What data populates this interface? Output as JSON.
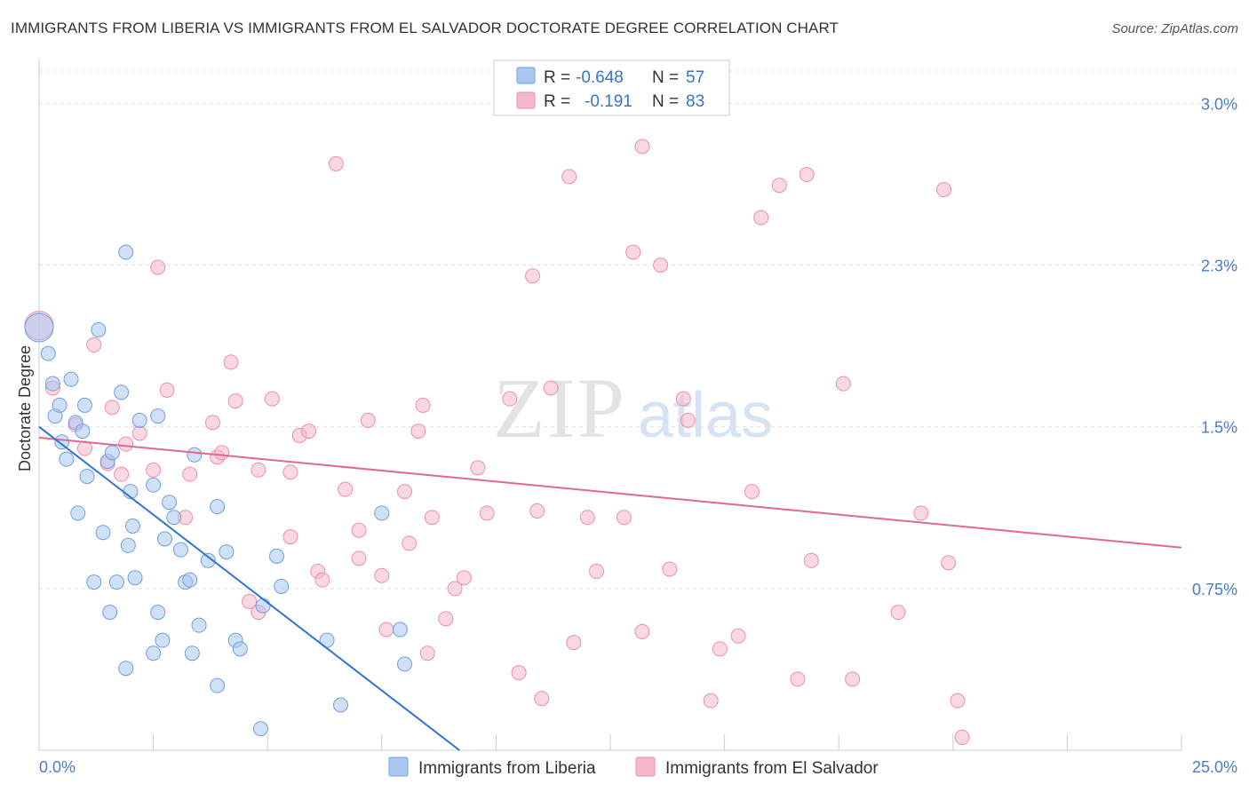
{
  "title": "IMMIGRANTS FROM LIBERIA VS IMMIGRANTS FROM EL SALVADOR DOCTORATE DEGREE CORRELATION CHART",
  "source": "Source: ZipAtlas.com",
  "watermark": {
    "zip": "ZIP",
    "atlas": "atlas"
  },
  "legend": {
    "r_label": "R =",
    "n_label": "N =",
    "rows": [
      {
        "r": "-0.648",
        "n": "57",
        "color": "#a9c7f0"
      },
      {
        "r": "-0.191",
        "n": "83",
        "color": "#f5b8cb"
      }
    ]
  },
  "chart_data": {
    "type": "scatter",
    "title": "IMMIGRANTS FROM LIBERIA VS IMMIGRANTS FROM EL SALVADOR DOCTORATE DEGREE CORRELATION CHART",
    "xlabel": "",
    "ylabel": "Doctorate Degree",
    "xlim": [
      0,
      25
    ],
    "ylim": [
      0,
      3.15
    ],
    "x_tick_labels": [
      "0.0%",
      "25.0%"
    ],
    "y_ticks": [
      0.75,
      1.5,
      2.25,
      3.0
    ],
    "y_tick_labels": [
      "0.75%",
      "1.5%",
      "2.3%",
      "3.0%"
    ],
    "grid": true,
    "legend_position": "top-center",
    "series": [
      {
        "name": "Immigrants from Liberia",
        "color": "#a9c7f0",
        "edge": "#6f9fe0",
        "trend_color": "#2d74d6",
        "trend": [
          [
            0.0,
            1.5
          ],
          [
            9.2,
            0.0
          ]
        ],
        "points": [
          [
            0.0,
            1.96
          ],
          [
            0.2,
            1.84
          ],
          [
            0.3,
            1.7
          ],
          [
            0.35,
            1.55
          ],
          [
            0.45,
            1.6
          ],
          [
            0.5,
            1.43
          ],
          [
            0.6,
            1.35
          ],
          [
            0.7,
            1.72
          ],
          [
            0.8,
            1.52
          ],
          [
            0.95,
            1.48
          ],
          [
            1.0,
            1.6
          ],
          [
            1.05,
            1.27
          ],
          [
            0.85,
            1.1
          ],
          [
            1.3,
            1.95
          ],
          [
            1.4,
            1.01
          ],
          [
            1.5,
            1.34
          ],
          [
            1.6,
            1.38
          ],
          [
            1.8,
            1.66
          ],
          [
            1.9,
            2.31
          ],
          [
            1.95,
            0.95
          ],
          [
            2.05,
            1.04
          ],
          [
            2.1,
            0.8
          ],
          [
            2.2,
            1.53
          ],
          [
            2.5,
            1.23
          ],
          [
            2.5,
            0.45
          ],
          [
            2.6,
            1.55
          ],
          [
            2.6,
            0.64
          ],
          [
            2.7,
            0.51
          ],
          [
            2.75,
            0.98
          ],
          [
            2.85,
            1.15
          ],
          [
            2.95,
            1.08
          ],
          [
            3.1,
            0.93
          ],
          [
            3.2,
            0.78
          ],
          [
            3.3,
            0.79
          ],
          [
            3.35,
            0.45
          ],
          [
            3.4,
            1.37
          ],
          [
            3.5,
            0.58
          ],
          [
            3.7,
            0.88
          ],
          [
            3.9,
            1.13
          ],
          [
            3.9,
            0.3
          ],
          [
            4.1,
            0.92
          ],
          [
            4.3,
            0.51
          ],
          [
            4.4,
            0.47
          ],
          [
            4.85,
            0.1
          ],
          [
            4.9,
            0.67
          ],
          [
            5.2,
            0.9
          ],
          [
            5.3,
            0.76
          ],
          [
            6.3,
            0.51
          ],
          [
            6.6,
            0.21
          ],
          [
            7.5,
            1.1
          ],
          [
            7.9,
            0.56
          ],
          [
            8.0,
            0.4
          ],
          [
            1.55,
            0.64
          ],
          [
            1.7,
            0.78
          ],
          [
            1.9,
            0.38
          ],
          [
            2.0,
            1.2
          ],
          [
            1.2,
            0.78
          ]
        ]
      },
      {
        "name": "Immigrants from El Salvador",
        "color": "#f5b8cb",
        "edge": "#ec8fab",
        "trend_color": "#e0698f",
        "trend": [
          [
            0.0,
            1.45
          ],
          [
            25.0,
            0.94
          ]
        ],
        "points": [
          [
            0.0,
            1.97
          ],
          [
            0.3,
            1.68
          ],
          [
            0.8,
            1.51
          ],
          [
            1.0,
            1.4
          ],
          [
            1.2,
            1.88
          ],
          [
            1.5,
            1.33
          ],
          [
            1.6,
            1.59
          ],
          [
            1.8,
            1.28
          ],
          [
            1.9,
            1.42
          ],
          [
            2.2,
            1.47
          ],
          [
            2.5,
            1.3
          ],
          [
            2.6,
            2.24
          ],
          [
            2.8,
            1.67
          ],
          [
            3.2,
            1.08
          ],
          [
            3.3,
            1.28
          ],
          [
            3.8,
            1.52
          ],
          [
            3.9,
            1.36
          ],
          [
            4.0,
            1.38
          ],
          [
            4.2,
            1.8
          ],
          [
            4.3,
            1.62
          ],
          [
            4.6,
            0.69
          ],
          [
            4.8,
            1.3
          ],
          [
            4.8,
            0.64
          ],
          [
            5.1,
            1.63
          ],
          [
            5.5,
            1.29
          ],
          [
            5.5,
            0.99
          ],
          [
            5.7,
            1.46
          ],
          [
            5.9,
            1.48
          ],
          [
            6.1,
            0.83
          ],
          [
            6.2,
            0.79
          ],
          [
            6.5,
            2.72
          ],
          [
            6.7,
            1.21
          ],
          [
            7.0,
            0.89
          ],
          [
            7.0,
            1.02
          ],
          [
            7.2,
            1.53
          ],
          [
            7.5,
            0.81
          ],
          [
            7.6,
            0.56
          ],
          [
            8.0,
            1.2
          ],
          [
            8.1,
            0.96
          ],
          [
            8.3,
            1.48
          ],
          [
            8.4,
            1.6
          ],
          [
            8.6,
            1.08
          ],
          [
            8.5,
            0.45
          ],
          [
            8.9,
            0.61
          ],
          [
            9.1,
            0.75
          ],
          [
            9.3,
            0.8
          ],
          [
            9.6,
            1.31
          ],
          [
            9.8,
            1.1
          ],
          [
            10.3,
            1.63
          ],
          [
            10.5,
            0.36
          ],
          [
            10.8,
            2.2
          ],
          [
            10.9,
            1.11
          ],
          [
            11.0,
            0.24
          ],
          [
            11.2,
            1.68
          ],
          [
            11.6,
            2.66
          ],
          [
            11.7,
            0.5
          ],
          [
            12.0,
            1.08
          ],
          [
            12.2,
            0.83
          ],
          [
            12.8,
            1.08
          ],
          [
            13.0,
            2.31
          ],
          [
            13.2,
            2.8
          ],
          [
            13.2,
            0.55
          ],
          [
            13.6,
            2.25
          ],
          [
            13.8,
            0.84
          ],
          [
            14.1,
            1.63
          ],
          [
            14.2,
            1.53
          ],
          [
            14.7,
            0.23
          ],
          [
            14.9,
            0.47
          ],
          [
            15.3,
            0.53
          ],
          [
            15.6,
            1.2
          ],
          [
            15.8,
            2.47
          ],
          [
            16.2,
            2.62
          ],
          [
            16.6,
            0.33
          ],
          [
            16.8,
            2.67
          ],
          [
            16.9,
            0.88
          ],
          [
            17.6,
            1.7
          ],
          [
            17.8,
            0.33
          ],
          [
            18.8,
            0.64
          ],
          [
            19.3,
            1.1
          ],
          [
            19.8,
            2.6
          ],
          [
            19.9,
            0.87
          ],
          [
            20.1,
            0.23
          ],
          [
            20.2,
            0.06
          ]
        ]
      }
    ]
  },
  "bottom_legend": [
    {
      "label": "Immigrants from Liberia",
      "color": "#a9c7f0"
    },
    {
      "label": "Immigrants from El Salvador",
      "color": "#f5b8cb"
    }
  ]
}
